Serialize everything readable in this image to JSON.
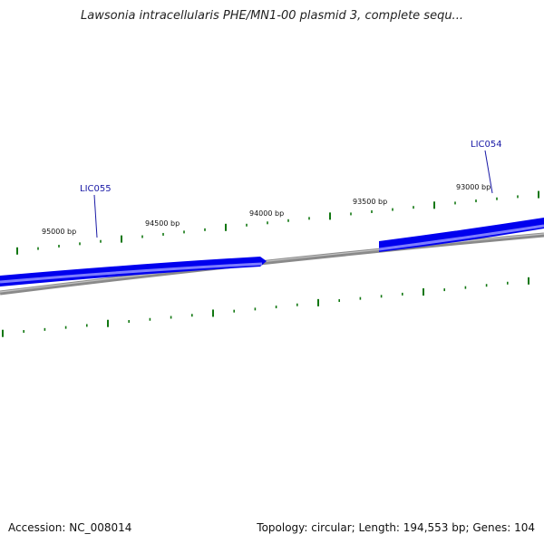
{
  "title": "Lawsonia intracellularis PHE/MN1-00 plasmid 3, complete sequ...",
  "footer": {
    "accession": "Accession: NC_008014",
    "summary": "Topology: circular; Length: 194,553 bp; Genes: 104"
  },
  "colors": {
    "gene": "#0000ee",
    "gene_highlight": "#7d7dff",
    "backbone": "#7a7a7a",
    "tick": "#117711",
    "gene_label": "#1a1aa6"
  },
  "tick_labels": [
    "95000 bp",
    "94500 bp",
    "94000 bp",
    "93500 bp",
    "93000 bp"
  ],
  "genes": [
    {
      "name": "LIC055"
    },
    {
      "name": "LIC054"
    }
  ]
}
